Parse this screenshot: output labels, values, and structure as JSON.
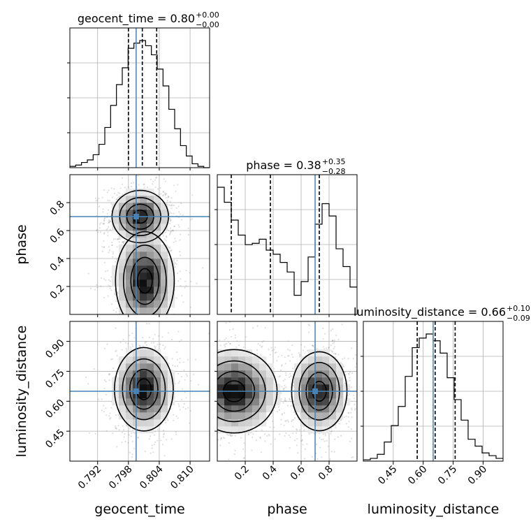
{
  "chart_data": {
    "type": "corner",
    "parameters": [
      "geocent_time",
      "phase",
      "luminosity_distance"
    ],
    "axis_labels": {
      "geocent_time": "geocent_time",
      "phase": "phase",
      "luminosity_distance": "luminosity_distance"
    },
    "ranges": {
      "geocent_time": [
        0.7866,
        0.8138
      ],
      "phase": [
        0.0,
        1.0
      ],
      "luminosity_distance": [
        0.3,
        1.0
      ]
    },
    "ticks": {
      "geocent_time": [
        "0.792",
        "0.798",
        "0.804",
        "0.810"
      ],
      "phase": [
        "0.2",
        "0.4",
        "0.6",
        "0.8"
      ],
      "luminosity_distance": [
        "0.45",
        "0.60",
        "0.75",
        "0.90"
      ]
    },
    "tick_values": {
      "geocent_time": [
        0.792,
        0.798,
        0.804,
        0.81
      ],
      "phase": [
        0.2,
        0.4,
        0.6,
        0.8
      ],
      "luminosity_distance": [
        0.45,
        0.6,
        0.75,
        0.9
      ]
    },
    "titles": [
      {
        "param": "geocent_time",
        "text": "geocent_time = 0.80",
        "sup": "+0.00",
        "sub": "−0.00"
      },
      {
        "param": "phase",
        "text": "phase = 0.38",
        "sup": "+0.35",
        "sub": "−0.28"
      },
      {
        "param": "luminosity_distance",
        "text": "luminosity_distance = 0.66",
        "sup": "+0.10",
        "sub": "−0.09"
      }
    ],
    "quantiles": {
      "geocent_time": [
        0.798,
        0.8007,
        0.8035
      ],
      "phase": [
        0.1,
        0.38,
        0.73
      ],
      "luminosity_distance": [
        0.57,
        0.66,
        0.76
      ]
    },
    "truths": {
      "geocent_time": 0.7995,
      "phase": 0.7,
      "luminosity_distance": 0.65
    },
    "histograms": {
      "geocent_time": [
        1,
        2,
        4,
        6,
        10,
        18,
        31,
        48,
        64,
        77,
        92,
        96,
        98,
        94,
        87,
        76,
        63,
        45,
        30,
        17,
        9,
        3,
        1,
        0
      ],
      "phase": [
        0.93,
        0.82,
        0.69,
        0.58,
        0.51,
        0.52,
        0.55,
        0.47,
        0.44,
        0.38,
        0.31,
        0.14,
        0.24,
        0.42,
        0.66,
        0.81,
        0.72,
        0.48,
        0.35,
        0.2
      ],
      "luminosity_distance": [
        0.01,
        0.02,
        0.05,
        0.14,
        0.26,
        0.4,
        0.62,
        0.83,
        0.9,
        0.93,
        0.88,
        0.79,
        0.61,
        0.45,
        0.3,
        0.16,
        0.11,
        0.06,
        0.04,
        0.02
      ]
    },
    "colors": {
      "truth": "#4682b4",
      "hist": "#000000",
      "grid": "#b0b0b0",
      "points": "#888888"
    },
    "grid": true
  }
}
